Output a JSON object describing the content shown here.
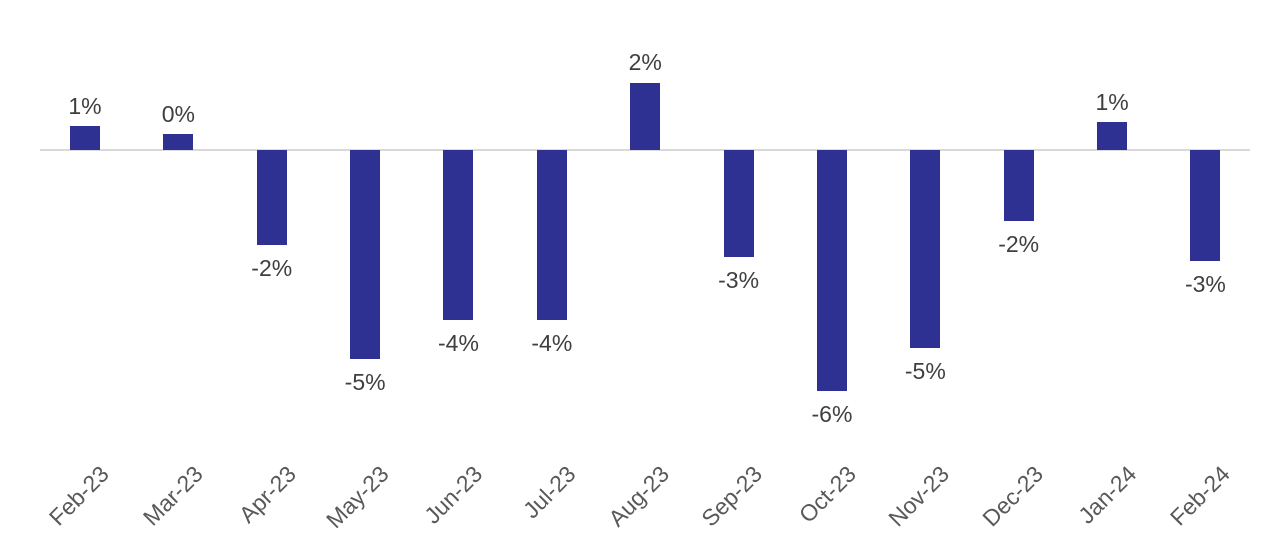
{
  "chart_data": {
    "type": "bar",
    "title": "",
    "xlabel": "",
    "ylabel": "",
    "categories": [
      "Feb-23",
      "Mar-23",
      "Apr-23",
      "May-23",
      "Jun-23",
      "Jul-23",
      "Aug-23",
      "Sep-23",
      "Oct-23",
      "Nov-23",
      "Dec-23",
      "Jan-24",
      "Feb-24"
    ],
    "values": [
      0.6,
      0.4,
      -2.4,
      -5.3,
      -4.3,
      -4.3,
      1.7,
      -2.7,
      -6.1,
      -5.0,
      -1.8,
      0.7,
      -2.8
    ],
    "data_labels": [
      "1%",
      "0%",
      "-2%",
      "-5%",
      "-4%",
      "-4%",
      "2%",
      "-3%",
      "-6%",
      "-5%",
      "-2%",
      "1%",
      "-3%"
    ],
    "ylim": [
      -7,
      3
    ],
    "grid": false,
    "legend": "none",
    "data_labels_shown": true,
    "colors": {
      "bar": "#2e3192",
      "axis_line": "#d9d9d9",
      "data_label": "#3f3f3f",
      "tick_label": "#595959",
      "background": "#ffffff"
    }
  }
}
